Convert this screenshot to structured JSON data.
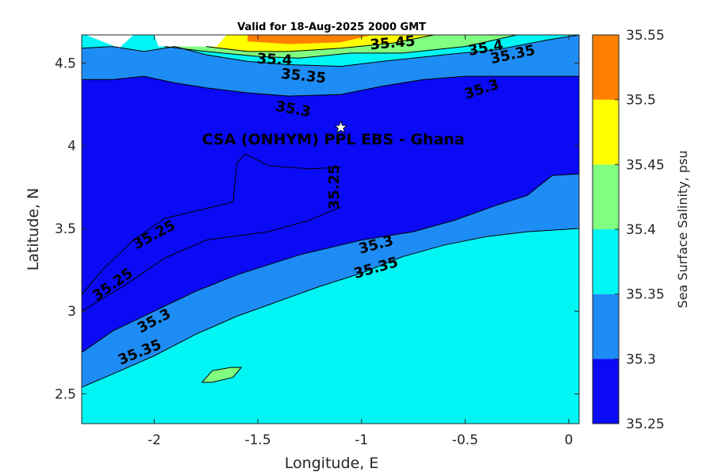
{
  "chart_data": {
    "type": "heatmap",
    "subtype": "filled-contour",
    "title": "Valid for 18-Aug-2025 2000 GMT",
    "xlabel": "Longitude, E",
    "ylabel": "Latitude, N",
    "xlim": [
      -2.35,
      0.05
    ],
    "ylim": [
      2.32,
      4.67
    ],
    "xticks": [
      -2,
      -1.5,
      -1,
      -0.5,
      0
    ],
    "xtick_labels": [
      "-2",
      "-1.5",
      "-1",
      "-0.5",
      "0"
    ],
    "yticks": [
      2.5,
      3,
      3.5,
      4,
      4.5
    ],
    "ytick_labels": [
      "2.5",
      "3",
      "3.5",
      "4",
      "4.5"
    ],
    "colorbar": {
      "label": "Sea Surface Salinity, psu",
      "levels": [
        35.25,
        35.3,
        35.35,
        35.4,
        35.45,
        35.5,
        35.55
      ],
      "level_labels": [
        "35.25",
        "35.3",
        "35.35",
        "35.4",
        "35.45",
        "35.5",
        "35.55"
      ],
      "colors": [
        "#0a0af5",
        "#1e8cf5",
        "#00f5f5",
        "#80ff80",
        "#ffff00",
        "#ff8000"
      ]
    },
    "regions": [
      {
        "level": 35.3,
        "color": "#1e8cf5",
        "polygon": [
          [
            -2.35,
            4.67
          ],
          [
            0.05,
            4.67
          ],
          [
            0.05,
            3.83
          ],
          [
            -0.08,
            3.82
          ],
          [
            -0.2,
            3.7
          ],
          [
            -0.35,
            3.64
          ],
          [
            -0.55,
            3.55
          ],
          [
            -0.75,
            3.48
          ],
          [
            -1.0,
            3.43
          ],
          [
            -1.3,
            3.34
          ],
          [
            -1.6,
            3.22
          ],
          [
            -1.8,
            3.12
          ],
          [
            -2.0,
            3.0
          ],
          [
            -2.2,
            2.88
          ],
          [
            -2.35,
            2.75
          ]
        ]
      },
      {
        "level": 35.25,
        "color": "#0a0af5",
        "polygon": [
          [
            -2.35,
            4.4
          ],
          [
            -2.2,
            4.4
          ],
          [
            -2.05,
            4.42
          ],
          [
            -1.9,
            4.38
          ],
          [
            -1.75,
            4.35
          ],
          [
            -1.55,
            4.32
          ],
          [
            -1.35,
            4.3
          ],
          [
            -1.1,
            4.31
          ],
          [
            -0.9,
            4.36
          ],
          [
            -0.7,
            4.4
          ],
          [
            -0.5,
            4.42
          ],
          [
            -0.2,
            4.42
          ],
          [
            0.05,
            4.42
          ],
          [
            0.05,
            3.83
          ],
          [
            -0.08,
            3.82
          ],
          [
            -0.2,
            3.7
          ],
          [
            -0.35,
            3.64
          ],
          [
            -0.55,
            3.55
          ],
          [
            -0.75,
            3.48
          ],
          [
            -1.0,
            3.43
          ],
          [
            -1.3,
            3.34
          ],
          [
            -1.6,
            3.22
          ],
          [
            -1.8,
            3.12
          ],
          [
            -2.0,
            3.0
          ],
          [
            -2.2,
            2.88
          ],
          [
            -2.35,
            2.75
          ]
        ]
      },
      {
        "level": 35.3,
        "color": "#1e8cf5",
        "polygon": [
          [
            -2.35,
            2.54
          ],
          [
            -2.2,
            2.62
          ],
          [
            -2.0,
            2.73
          ],
          [
            -1.8,
            2.86
          ],
          [
            -1.6,
            2.97
          ],
          [
            -1.4,
            3.06
          ],
          [
            -1.2,
            3.15
          ],
          [
            -1.0,
            3.23
          ],
          [
            -0.8,
            3.33
          ],
          [
            -0.6,
            3.4
          ],
          [
            -0.4,
            3.45
          ],
          [
            -0.2,
            3.48
          ],
          [
            0.05,
            3.5
          ],
          [
            0.05,
            3.83
          ],
          [
            -0.08,
            3.82
          ],
          [
            -0.2,
            3.7
          ],
          [
            -0.35,
            3.64
          ],
          [
            -0.55,
            3.55
          ],
          [
            -0.75,
            3.48
          ],
          [
            -1.0,
            3.43
          ],
          [
            -1.3,
            3.34
          ],
          [
            -1.6,
            3.22
          ],
          [
            -1.8,
            3.12
          ],
          [
            -2.0,
            3.0
          ],
          [
            -2.2,
            2.88
          ],
          [
            -2.35,
            2.75
          ]
        ]
      },
      {
        "level": 35.35,
        "color": "#00f5f5",
        "polygon": [
          [
            -2.35,
            2.32
          ],
          [
            0.05,
            2.32
          ],
          [
            0.05,
            3.5
          ],
          [
            -0.2,
            3.48
          ],
          [
            -0.4,
            3.45
          ],
          [
            -0.6,
            3.4
          ],
          [
            -0.8,
            3.33
          ],
          [
            -1.0,
            3.23
          ],
          [
            -1.2,
            3.15
          ],
          [
            -1.4,
            3.06
          ],
          [
            -1.6,
            2.97
          ],
          [
            -1.8,
            2.86
          ],
          [
            -2.0,
            2.73
          ],
          [
            -2.2,
            2.62
          ],
          [
            -2.35,
            2.54
          ]
        ]
      },
      {
        "level": 35.4,
        "color": "#80ff80",
        "polygon": [
          [
            -1.77,
            2.57
          ],
          [
            -1.72,
            2.64
          ],
          [
            -1.63,
            2.66
          ],
          [
            -1.58,
            2.66
          ],
          [
            -1.62,
            2.6
          ],
          [
            -1.72,
            2.57
          ]
        ]
      },
      {
        "level": 35.35,
        "color": "#00f5f5",
        "polygon": [
          [
            -2.35,
            4.67
          ],
          [
            -2.35,
            4.59
          ],
          [
            -2.2,
            4.6
          ],
          [
            -2.05,
            4.57
          ],
          [
            -1.9,
            4.6
          ],
          [
            -1.75,
            4.55
          ],
          [
            -1.55,
            4.51
          ],
          [
            -1.35,
            4.49
          ],
          [
            -1.1,
            4.48
          ],
          [
            -0.9,
            4.51
          ],
          [
            -0.6,
            4.55
          ],
          [
            -0.35,
            4.58
          ],
          [
            -0.1,
            4.64
          ],
          [
            0.05,
            4.67
          ]
        ]
      },
      {
        "level": 35.4,
        "color": "#80ff80",
        "polygon": [
          [
            -1.95,
            4.6
          ],
          [
            -1.75,
            4.57
          ],
          [
            -1.5,
            4.54
          ],
          [
            -1.3,
            4.53
          ],
          [
            -1.05,
            4.56
          ],
          [
            -0.8,
            4.56
          ],
          [
            -0.5,
            4.6
          ],
          [
            -0.25,
            4.67
          ],
          [
            -1.95,
            4.67
          ]
        ]
      },
      {
        "level": 35.45,
        "color": "#ffff00",
        "polygon": [
          [
            -1.75,
            4.6
          ],
          [
            -1.55,
            4.57
          ],
          [
            -1.35,
            4.57
          ],
          [
            -1.1,
            4.59
          ],
          [
            -0.85,
            4.62
          ],
          [
            -0.65,
            4.67
          ],
          [
            -1.75,
            4.67
          ]
        ]
      },
      {
        "level": 35.5,
        "color": "#ff8000",
        "polygon": [
          [
            -1.55,
            4.63
          ],
          [
            -1.35,
            4.615
          ],
          [
            -1.1,
            4.625
          ],
          [
            -0.95,
            4.67
          ],
          [
            -1.55,
            4.67
          ]
        ]
      },
      {
        "level": "no-data",
        "color": "#ffffff",
        "polygon": [
          [
            -2.35,
            4.67
          ],
          [
            -2.33,
            4.67
          ],
          [
            -2.17,
            4.59
          ],
          [
            -2.1,
            4.67
          ],
          [
            -2.0,
            4.67
          ],
          [
            -1.98,
            4.6
          ],
          [
            -1.7,
            4.6
          ],
          [
            -1.65,
            4.67
          ]
        ]
      }
    ],
    "contours": [
      {
        "level": 35.25,
        "points": [
          [
            -2.35,
            3.1
          ],
          [
            -2.25,
            3.25
          ],
          [
            -2.1,
            3.43
          ],
          [
            -1.95,
            3.56
          ],
          [
            -1.75,
            3.62
          ],
          [
            -1.62,
            3.66
          ],
          [
            -1.6,
            3.9
          ],
          [
            -1.56,
            3.95
          ],
          [
            -1.45,
            3.88
          ],
          [
            -1.25,
            3.86
          ],
          [
            -1.1,
            3.87
          ]
        ]
      },
      {
        "level": 35.25,
        "points": [
          [
            -2.35,
            3.0
          ],
          [
            -2.15,
            3.15
          ],
          [
            -1.95,
            3.32
          ],
          [
            -1.75,
            3.43
          ],
          [
            -1.45,
            3.48
          ],
          [
            -1.25,
            3.55
          ],
          [
            -1.1,
            3.63
          ]
        ]
      },
      {
        "level": 35.3,
        "points": [
          [
            -2.35,
            2.75
          ],
          [
            -2.2,
            2.88
          ],
          [
            -2.0,
            3.0
          ],
          [
            -1.8,
            3.12
          ],
          [
            -1.6,
            3.22
          ],
          [
            -1.3,
            3.34
          ],
          [
            -1.0,
            3.43
          ],
          [
            -0.75,
            3.48
          ],
          [
            -0.55,
            3.55
          ],
          [
            -0.35,
            3.64
          ],
          [
            -0.2,
            3.7
          ],
          [
            -0.08,
            3.82
          ],
          [
            0.05,
            3.83
          ]
        ]
      },
      {
        "level": 35.35,
        "points": [
          [
            -2.35,
            2.54
          ],
          [
            -2.2,
            2.62
          ],
          [
            -2.0,
            2.73
          ],
          [
            -1.8,
            2.86
          ],
          [
            -1.6,
            2.97
          ],
          [
            -1.4,
            3.06
          ],
          [
            -1.2,
            3.15
          ],
          [
            -1.0,
            3.23
          ],
          [
            -0.8,
            3.33
          ],
          [
            -0.6,
            3.4
          ],
          [
            -0.4,
            3.45
          ],
          [
            -0.2,
            3.48
          ],
          [
            0.05,
            3.5
          ]
        ]
      },
      {
        "level": 35.3,
        "points": [
          [
            -2.35,
            4.4
          ],
          [
            -2.2,
            4.4
          ],
          [
            -2.05,
            4.42
          ],
          [
            -1.9,
            4.38
          ],
          [
            -1.75,
            4.35
          ],
          [
            -1.55,
            4.32
          ],
          [
            -1.35,
            4.3
          ],
          [
            -1.1,
            4.31
          ],
          [
            -0.9,
            4.36
          ],
          [
            -0.7,
            4.4
          ],
          [
            -0.5,
            4.42
          ],
          [
            -0.2,
            4.42
          ],
          [
            0.05,
            4.42
          ]
        ]
      },
      {
        "level": 35.35,
        "points": [
          [
            -2.35,
            4.59
          ],
          [
            -2.2,
            4.6
          ],
          [
            -2.05,
            4.57
          ],
          [
            -1.9,
            4.6
          ],
          [
            -1.75,
            4.55
          ],
          [
            -1.55,
            4.51
          ],
          [
            -1.35,
            4.49
          ],
          [
            -1.1,
            4.48
          ],
          [
            -0.9,
            4.51
          ],
          [
            -0.6,
            4.55
          ],
          [
            -0.35,
            4.58
          ],
          [
            -0.1,
            4.64
          ],
          [
            0.05,
            4.67
          ]
        ]
      },
      {
        "level": 35.4,
        "points": [
          [
            -1.95,
            4.6
          ],
          [
            -1.75,
            4.57
          ],
          [
            -1.5,
            4.54
          ],
          [
            -1.3,
            4.53
          ],
          [
            -1.05,
            4.56
          ],
          [
            -0.8,
            4.56
          ],
          [
            -0.5,
            4.6
          ],
          [
            -0.25,
            4.67
          ]
        ]
      },
      {
        "level": 35.45,
        "points": [
          [
            -1.75,
            4.6
          ],
          [
            -1.55,
            4.57
          ],
          [
            -1.35,
            4.57
          ],
          [
            -1.1,
            4.59
          ],
          [
            -0.85,
            4.62
          ],
          [
            -0.65,
            4.67
          ]
        ]
      },
      {
        "level": 35.4,
        "points": [
          [
            -1.77,
            2.57
          ],
          [
            -1.72,
            2.64
          ],
          [
            -1.63,
            2.66
          ],
          [
            -1.58,
            2.66
          ],
          [
            -1.62,
            2.6
          ],
          [
            -1.72,
            2.57
          ],
          [
            -1.77,
            2.57
          ]
        ]
      }
    ],
    "contour_labels": [
      {
        "text": "35.45",
        "x": -0.85,
        "y": 4.62,
        "angle": -5
      },
      {
        "text": "35.4",
        "x": -0.4,
        "y": 4.59,
        "angle": -10
      },
      {
        "text": "35.35",
        "x": -0.27,
        "y": 4.55,
        "angle": -12
      },
      {
        "text": "35.4",
        "x": -1.42,
        "y": 4.52,
        "angle": 3
      },
      {
        "text": "35.35",
        "x": -1.28,
        "y": 4.42,
        "angle": 6
      },
      {
        "text": "35.3",
        "x": -1.33,
        "y": 4.22,
        "angle": 10
      },
      {
        "text": "35.3",
        "x": -0.42,
        "y": 4.34,
        "angle": -18
      },
      {
        "text": "35.25",
        "x": -1.13,
        "y": 3.75,
        "angle": -90
      },
      {
        "text": "35.25",
        "x": -2.0,
        "y": 3.46,
        "angle": -28
      },
      {
        "text": "35.25",
        "x": -2.2,
        "y": 3.16,
        "angle": -35
      },
      {
        "text": "35.3",
        "x": -2.0,
        "y": 2.94,
        "angle": -28
      },
      {
        "text": "35.35",
        "x": -2.07,
        "y": 2.75,
        "angle": -22
      },
      {
        "text": "35.3",
        "x": -0.93,
        "y": 3.4,
        "angle": -15
      },
      {
        "text": "35.35",
        "x": -0.93,
        "y": 3.26,
        "angle": -16
      }
    ],
    "site": {
      "label": "CSA (ONHYM) PPL EBS  - Ghana",
      "x": -1.1,
      "y": 4.11,
      "marker": "star",
      "marker_color": "#ffffff"
    }
  }
}
